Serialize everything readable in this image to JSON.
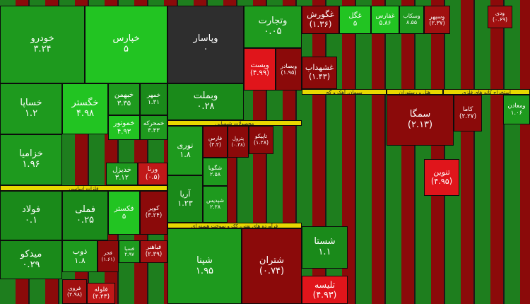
{
  "sectors": [
    {
      "label": "فلزات اساسی",
      "color": "#e8d800"
    },
    {
      "label": "محصولات شیمیایی",
      "color": "#e8d800"
    },
    {
      "label": "فرآورده های نفتی، کک و سوخت هسته ای",
      "color": "#e8d800"
    },
    {
      "label": "سیمان، آهک و گچ",
      "color": "#e8d800"
    },
    {
      "label": "هتل و رستوران",
      "color": "#e8d800"
    },
    {
      "label": "استخراج کانه های فلزی",
      "color": "#e8d800"
    }
  ],
  "tiles": [
    {
      "name": "خودرو",
      "change": "۳.۲۴",
      "color": "#1e9a1e"
    },
    {
      "name": "خپارس",
      "change": "۵",
      "color": "#22c422"
    },
    {
      "name": "وپاسار",
      "change": "۰",
      "color": "#2e2e2e"
    },
    {
      "name": "وتجارت",
      "change": "۰.۰۵",
      "color": "#1e9a1e"
    },
    {
      "name": "خساپا",
      "change": "۱.۲",
      "color": "#1e9a1e"
    },
    {
      "name": "خگستر",
      "change": "۴.۹۸",
      "color": "#22c422"
    },
    {
      "name": "خبهمن",
      "change": "۳.۳۵",
      "color": "#1e9a1e"
    },
    {
      "name": "خمهر",
      "change": "۱.۳۱",
      "color": "#1a8a1a"
    },
    {
      "name": "خموتور",
      "change": "۴.۹۳",
      "color": "#22c422"
    },
    {
      "name": "خمحرکه",
      "change": "۳.۴۳",
      "color": "#1e9a1e"
    },
    {
      "name": "خزامیا",
      "change": "۱.۹۶",
      "color": "#1e9a1e"
    },
    {
      "name": "خدیزل",
      "change": "۳.۱۲",
      "color": "#1e9a1e"
    },
    {
      "name": "ورنا",
      "change": "(۰.۵)",
      "color": "#c01818"
    },
    {
      "name": "فولاد",
      "change": "۰.۱",
      "color": "#1a8a1a"
    },
    {
      "name": "فملی",
      "change": "۰.۲۵",
      "color": "#1a8a1a"
    },
    {
      "name": "فکستر",
      "change": "۵",
      "color": "#22c422"
    },
    {
      "name": "کویر",
      "change": "(۳.۲۴)",
      "color": "#8b0a0a"
    },
    {
      "name": "میدکو",
      "change": "۰.۲۹",
      "color": "#1a8a1a"
    },
    {
      "name": "ذوب",
      "change": "۱.۸",
      "color": "#1e9a1e"
    },
    {
      "name": "فجر",
      "change": "(۱.۶۱)",
      "color": "#8b0a0a"
    },
    {
      "name": "فسپا",
      "change": "۲.۹۷",
      "color": "#1e9a1e"
    },
    {
      "name": "فباهنر",
      "change": "(۲.۳۹)",
      "color": "#a01010"
    },
    {
      "name": "فروی",
      "change": "(۲.۹۸)",
      "color": "#a01010"
    },
    {
      "name": "فلوله",
      "change": "(۴.۴۳)",
      "color": "#c01818"
    },
    {
      "name": "وبملت",
      "change": "۰.۲۸",
      "color": "#1a8a1a"
    },
    {
      "name": "نوری",
      "change": "۱.۸",
      "color": "#1e9a1e"
    },
    {
      "name": "فارس",
      "change": "(۳.۲)",
      "color": "#8b0a0a"
    },
    {
      "name": "پترول",
      "change": "(۰.۳۸)",
      "color": "#8b0a0a"
    },
    {
      "name": "تاپیکو",
      "change": "(۱.۲۸)",
      "color": "#8b0a0a"
    },
    {
      "name": "شگویا",
      "change": "۲.۵۸",
      "color": "#1e9a1e"
    },
    {
      "name": "آریا",
      "change": "۱.۲۳",
      "color": "#1a8a1a"
    },
    {
      "name": "شپدیس",
      "change": "۲.۲۸",
      "color": "#1e9a1e"
    },
    {
      "name": "شپنا",
      "change": "۱.۹۵",
      "color": "#1e9a1e"
    },
    {
      "name": "شتران",
      "change": "(۰.۷۴)",
      "color": "#8b0a0a"
    },
    {
      "name": "ویست",
      "change": "(۴.۹۹)",
      "color": "#e0151b"
    },
    {
      "name": "وبصادر",
      "change": "(۱.۹۵)",
      "color": "#8b0a0a"
    },
    {
      "name": "غگورش",
      "change": "(۱.۳۶)",
      "color": "#8b0a0a"
    },
    {
      "name": "غگل",
      "change": "۵",
      "color": "#22c422"
    },
    {
      "name": "غفارس",
      "change": "۵.۸۶",
      "color": "#22c422"
    },
    {
      "name": "وسکاب",
      "change": "۸.۵۵",
      "color": "#1e9a1e"
    },
    {
      "name": "وسپهر",
      "change": "(۲.۳۷)",
      "color": "#a01010"
    },
    {
      "name": "ودی",
      "change": "(۰.۶۹)",
      "color": "#a01010"
    },
    {
      "name": "غشهداب",
      "change": "(۱.۴۳)",
      "color": "#8b0a0a"
    },
    {
      "name": "سمگا",
      "change": "(۲.۱۳)",
      "color": "#8b0a0a"
    },
    {
      "name": "کاما",
      "change": "(۲.۲۷)",
      "color": "#8b0a0a"
    },
    {
      "name": "ومعادن",
      "change": "۱.۰۶",
      "color": "#1e9a1e"
    },
    {
      "name": "تنوین",
      "change": "(۴.۹۵)",
      "color": "#e0151b"
    },
    {
      "name": "شستا",
      "change": "۱.۱",
      "color": "#1a8a1a"
    },
    {
      "name": "تلیسه",
      "change": "(۴.۹۳)",
      "color": "#e0151b"
    }
  ]
}
